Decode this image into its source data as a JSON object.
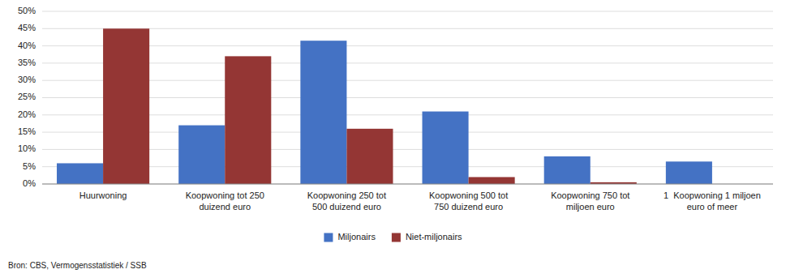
{
  "chart_data": {
    "type": "bar",
    "categories": [
      "Huurwoning",
      "Koopwoning tot 250\nduizend euro",
      "Koopwoning 250 tot\n500 duizend euro",
      "Koopwoning 500 tot\n750 duizend euro",
      "Koopwoning 750 tot\nmiljoen euro",
      "1  Koopwoning 1 miljoen\neuro of meer"
    ],
    "series": [
      {
        "name": "Miljonairs",
        "color": "#4472C4",
        "values": [
          6,
          17,
          41.5,
          21,
          8,
          6.5
        ]
      },
      {
        "name": "Niet-miljonairs",
        "color": "#943634",
        "values": [
          45,
          37,
          16,
          2,
          0.5,
          0
        ]
      }
    ],
    "ylim": [
      0,
      50
    ],
    "yticks": [
      {
        "value": 0,
        "label": "0%"
      },
      {
        "value": 5,
        "label": "5%"
      },
      {
        "value": 10,
        "label": "10%"
      },
      {
        "value": 15,
        "label": "15%"
      },
      {
        "value": 20,
        "label": "20%"
      },
      {
        "value": 25,
        "label": "25%"
      },
      {
        "value": 30,
        "label": "30%"
      },
      {
        "value": 35,
        "label": "35%"
      },
      {
        "value": 40,
        "label": "40%"
      },
      {
        "value": 45,
        "label": "45%"
      },
      {
        "value": 50,
        "label": "50%"
      }
    ],
    "grid": true,
    "legend": "bottom",
    "annotations": [
      "Bron: CBS, Vermogensstatistiek / SSB"
    ]
  }
}
